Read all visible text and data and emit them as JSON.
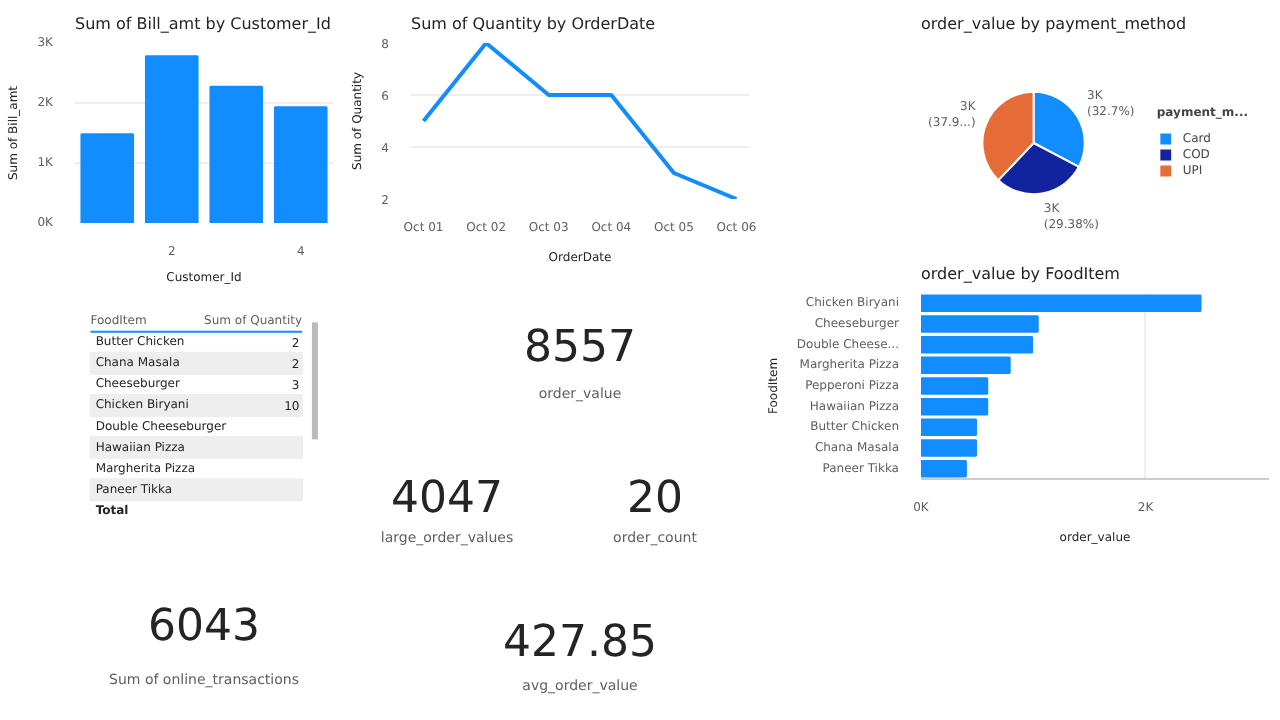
{
  "chart_data": [
    {
      "type": "bar",
      "title": "Sum of Bill_amt by Customer_Id",
      "xlabel": "Customer_Id",
      "ylabel": "Sum of Bill_amt",
      "x": [
        1,
        2,
        3,
        4
      ],
      "values": [
        1480,
        2780,
        2270,
        1930
      ],
      "color": "#118dff",
      "xlim": [
        0.5,
        4.5
      ],
      "xticks": [
        2,
        4
      ],
      "ylim": [
        0,
        3000
      ],
      "yticks": [
        {
          "value": 0,
          "label": "0K"
        },
        {
          "value": 1000,
          "label": "1K"
        },
        {
          "value": 2000,
          "label": "2K"
        },
        {
          "value": 3000,
          "label": "3K"
        }
      ],
      "grid": "y"
    },
    {
      "type": "line",
      "title": "Sum of Quantity by OrderDate",
      "xlabel": "OrderDate",
      "ylabel": "Sum of Quantity",
      "categories": [
        "Oct 01",
        "Oct 02",
        "Oct 03",
        "Oct 04",
        "Oct 05",
        "Oct 06"
      ],
      "values": [
        5,
        8,
        6,
        6,
        3,
        2
      ],
      "color": "#118dff",
      "ylim": [
        2,
        8
      ],
      "yticks": [
        2,
        4,
        6,
        8
      ],
      "grid": "y"
    },
    {
      "type": "pie",
      "title": "order_value by payment_method",
      "legend_title": "payment_m...",
      "legend": "right",
      "categories": [
        "Card",
        "COD",
        "UPI"
      ],
      "values": [
        32.7,
        29.38,
        37.92
      ],
      "colors": [
        "#118dff",
        "#12239e",
        "#e66c37"
      ],
      "value_labels": [
        "3K (32.7%)",
        "3K (29.38%)",
        "3K (37.9...)"
      ]
    },
    {
      "type": "other",
      "annotations": [
        "FoodItem",
        "Sum of Quantity",
        "Total"
      ],
      "categories": [
        "Butter Chicken",
        "Chana Masala",
        "Cheeseburger",
        "Chicken Biryani",
        "Double Cheeseburger",
        "Hawaiian Pizza",
        "Margherita Pizza",
        "Paneer Tikka"
      ],
      "value_labels": [
        "2",
        "2",
        "3",
        "10",
        null,
        null,
        null,
        null
      ]
    },
    {
      "type": "other",
      "annotations": [
        "8557",
        "order_value"
      ]
    },
    {
      "type": "bar",
      "orientation": "horizontal",
      "title": "order_value by FoodItem",
      "xlabel": "order_value",
      "ylabel": "FoodItem",
      "categories": [
        "Chicken Biryani",
        "Cheeseburger",
        "Double Cheese...",
        "Margherita Pizza",
        "Pepperoni Pizza",
        "Hawaiian Pizza",
        "Butter Chicken",
        "Chana Masala",
        "Paneer Tikka"
      ],
      "values": [
        2490,
        1040,
        990,
        790,
        590,
        590,
        490,
        490,
        400
      ],
      "color": "#118dff",
      "xlim": [
        0,
        3100
      ],
      "xticks": [
        {
          "value": 0,
          "label": "0K"
        },
        {
          "value": 2000,
          "label": "2K"
        }
      ],
      "grid": "x"
    },
    {
      "type": "other",
      "annotations": [
        "4047",
        "large_order_values"
      ]
    },
    {
      "type": "other",
      "annotations": [
        "20",
        "order_count"
      ]
    },
    {
      "type": "other",
      "annotations": [
        "6043",
        "Sum of online_transactions"
      ]
    },
    {
      "type": "other",
      "annotations": [
        "427.85",
        "avg_order_value"
      ]
    }
  ]
}
